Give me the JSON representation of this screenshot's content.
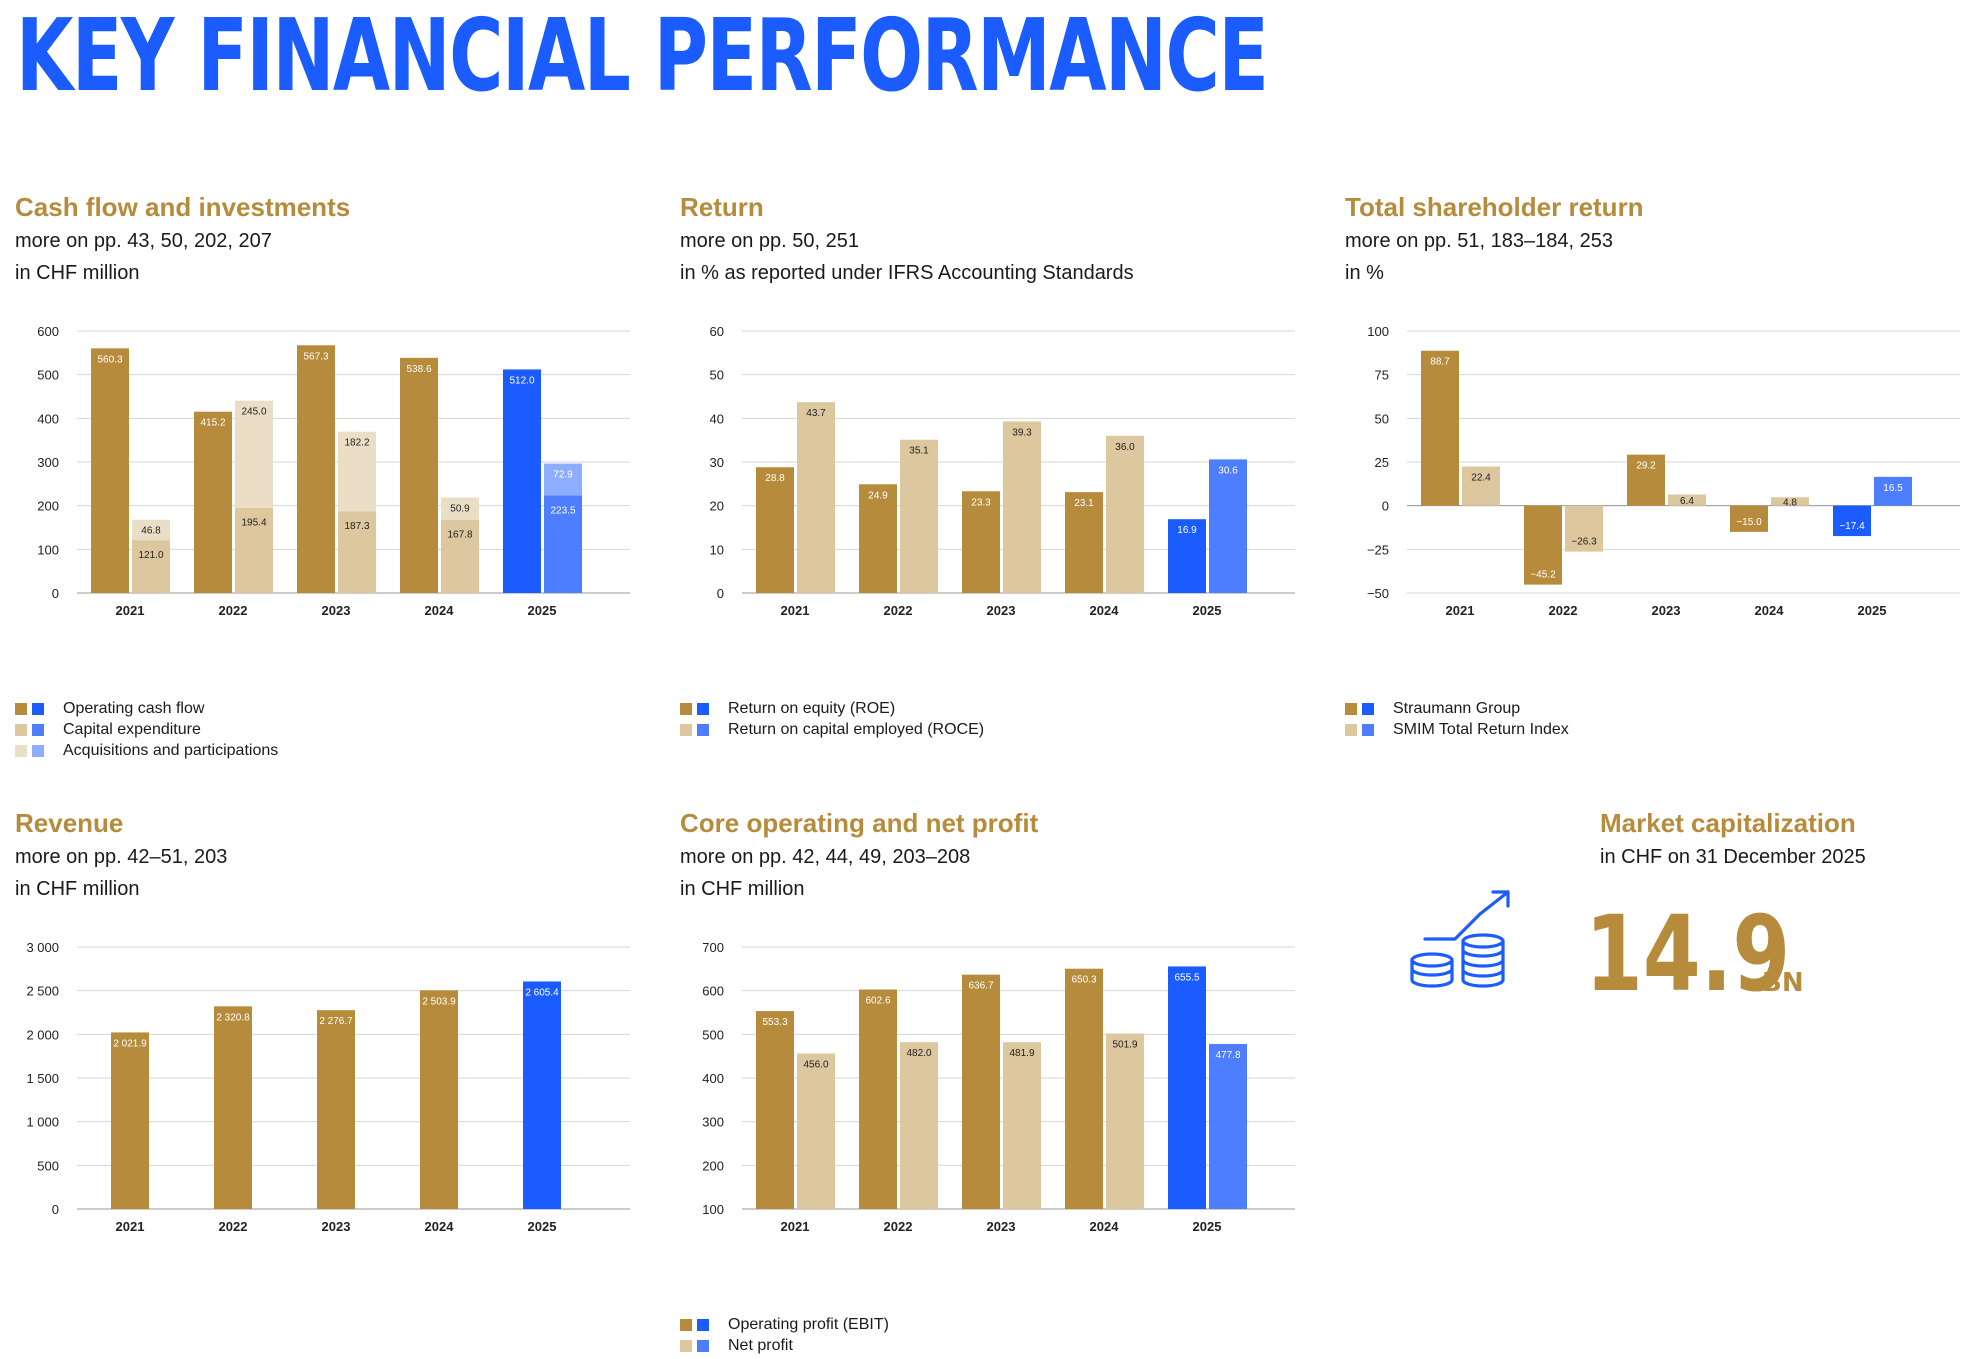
{
  "page_title": "KEY FINANCIAL PERFORMANCE",
  "colors": {
    "title_blue": "#1a5cff",
    "gold": "#b68c3c",
    "beige": "#dcc79e",
    "light_beige": "#eadfc6",
    "blue": "#1a5cff",
    "mid_blue": "#4d7eff",
    "light_blue": "#8fadff"
  },
  "panels": {
    "cashflow": {
      "title": "Cash flow and investments",
      "sub1": "more on pp. 43, 50, 202, 207",
      "sub2": "in CHF million",
      "legend": [
        "Operating cash flow",
        "Capital expenditure",
        "Acquisitions and participations"
      ]
    },
    "return": {
      "title": "Return",
      "sub1": "more on pp. 50, 251",
      "sub2": "in % as reported under IFRS Accounting Standards",
      "legend": [
        "Return on equity (ROE)",
        "Return on capital employed (ROCE)"
      ]
    },
    "tsr": {
      "title": "Total shareholder return",
      "sub1": "more on pp. 51, 183–184, 253",
      "sub2": "in %",
      "legend": [
        "Straumann Group",
        "SMIM Total Return Index"
      ]
    },
    "revenue": {
      "title": "Revenue",
      "sub1": "more on pp. 42–51, 203",
      "sub2": "in CHF million"
    },
    "profit": {
      "title": "Core operating and net profit",
      "sub1": "more on pp. 42, 44, 49, 203–208",
      "sub2": "in CHF million",
      "legend": [
        "Operating profit (EBIT)",
        "Net profit"
      ]
    },
    "market": {
      "title": "Market capitalization",
      "sub1": "in CHF on 31 December 2025",
      "value": "14.9",
      "unit": "BN",
      "icon": "coins-growth-icon"
    }
  },
  "chart_data": [
    {
      "id": "cashflow",
      "type": "bar",
      "title": "Cash flow and investments",
      "ylabel": "CHF million",
      "categories": [
        "2021",
        "2022",
        "2023",
        "2024",
        "2025"
      ],
      "yticks": [
        "0",
        "100",
        "200",
        "300",
        "400",
        "500",
        "600"
      ],
      "ylim": [
        0,
        600
      ],
      "series": [
        {
          "name": "Operating cash flow",
          "values": [
            560.3,
            415.2,
            567.3,
            538.6,
            512.0
          ],
          "labels": [
            "560.3",
            "415.2",
            "567.3",
            "538.6",
            "512.0"
          ]
        },
        {
          "name": "Capital expenditure",
          "values": [
            121.0,
            195.4,
            187.3,
            167.8,
            223.5
          ],
          "labels": [
            "121.0",
            "195.4",
            "187.3",
            "167.8",
            "223.5"
          ]
        },
        {
          "name": "Acquisitions and participations",
          "values": [
            46.8,
            245.0,
            182.2,
            50.9,
            72.9
          ],
          "labels": [
            "46.8",
            "245.0",
            "182.2",
            "50.9",
            "72.9"
          ]
        }
      ]
    },
    {
      "id": "return",
      "type": "bar",
      "title": "Return",
      "ylabel": "%",
      "categories": [
        "2021",
        "2022",
        "2023",
        "2024",
        "2025"
      ],
      "yticks": [
        "0",
        "10",
        "20",
        "30",
        "40",
        "50",
        "60"
      ],
      "ylim": [
        0,
        60
      ],
      "series": [
        {
          "name": "Return on equity (ROE)",
          "values": [
            28.8,
            24.9,
            23.3,
            23.1,
            16.9
          ],
          "labels": [
            "28.8",
            "24.9",
            "23.3",
            "23.1",
            "16.9"
          ]
        },
        {
          "name": "Return on capital employed (ROCE)",
          "values": [
            43.7,
            35.1,
            39.3,
            36.0,
            30.6
          ],
          "labels": [
            "43.7",
            "35.1",
            "39.3",
            "36.0",
            "30.6"
          ]
        }
      ]
    },
    {
      "id": "tsr",
      "type": "bar",
      "title": "Total shareholder return",
      "ylabel": "%",
      "categories": [
        "2021",
        "2022",
        "2023",
        "2024",
        "2025"
      ],
      "yticks": [
        "−50",
        "−25",
        "0",
        "25",
        "50",
        "75",
        "100"
      ],
      "ylim": [
        -50,
        100
      ],
      "series": [
        {
          "name": "Straumann Group",
          "values": [
            88.7,
            -45.2,
            29.2,
            -15.0,
            -17.4
          ],
          "labels": [
            "88.7",
            "−45.2",
            "29.2",
            "−15.0",
            "−17.4"
          ]
        },
        {
          "name": "SMIM Total Return Index",
          "values": [
            22.4,
            -26.3,
            6.4,
            4.8,
            16.5
          ],
          "labels": [
            "22.4",
            "−26.3",
            "6.4",
            "4.8",
            "16.5"
          ]
        }
      ]
    },
    {
      "id": "revenue",
      "type": "bar",
      "title": "Revenue",
      "ylabel": "CHF million",
      "categories": [
        "2021",
        "2022",
        "2023",
        "2024",
        "2025"
      ],
      "yticks": [
        "0",
        "500",
        "1 000",
        "1 500",
        "2 000",
        "2 500",
        "3 000"
      ],
      "ylim": [
        0,
        3000
      ],
      "series": [
        {
          "name": "Revenue",
          "values": [
            2021.9,
            2320.8,
            2276.7,
            2503.9,
            2605.4
          ],
          "labels": [
            "2 021.9",
            "2 320.8",
            "2 276.7",
            "2 503.9",
            "2 605.4"
          ]
        }
      ]
    },
    {
      "id": "profit",
      "type": "bar",
      "title": "Core operating and net profit",
      "ylabel": "CHF million",
      "categories": [
        "2021",
        "2022",
        "2023",
        "2024",
        "2025"
      ],
      "yticks": [
        "100",
        "200",
        "300",
        "400",
        "500",
        "600",
        "700"
      ],
      "ylim": [
        100,
        700
      ],
      "series": [
        {
          "name": "Operating profit (EBIT)",
          "values": [
            553.3,
            602.6,
            636.7,
            650.3,
            655.5
          ],
          "labels": [
            "553.3",
            "602.6",
            "636.7",
            "650.3",
            "655.5"
          ]
        },
        {
          "name": "Net profit",
          "values": [
            456.0,
            482.0,
            481.9,
            501.9,
            477.8
          ],
          "labels": [
            "456.0",
            "482.0",
            "481.9",
            "501.9",
            "477.8"
          ]
        }
      ]
    }
  ]
}
